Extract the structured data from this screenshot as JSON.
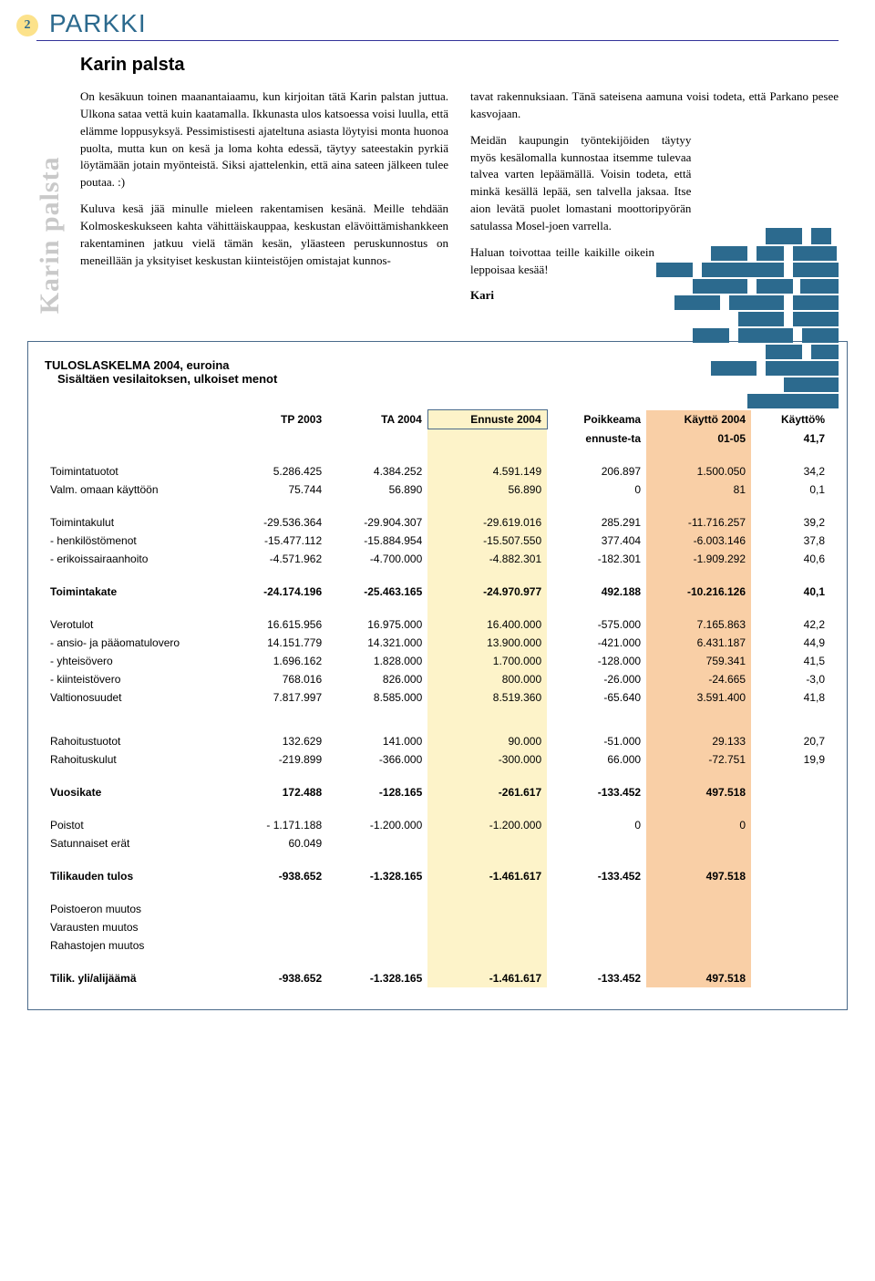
{
  "header": {
    "page_number": "2",
    "brand": "PARKKI",
    "brand_color": "#2c6a8e",
    "badge_bg": "#fce28b"
  },
  "article": {
    "side_label": "Karin palsta",
    "title": "Karin palsta",
    "col1_p1": "On kesäkuun toinen maanantaiaamu, kun kirjoitan tätä Karin palstan juttua. Ulkona sataa vettä kuin kaatamalla. Ikkunasta ulos katsoessa voisi luulla, että elämme loppusyksyä. Pessimistisesti ajateltuna asiasta löytyisi monta huonoa puolta, mutta kun on kesä ja loma kohta edessä, täytyy sateestakin pyrkiä löytämään jotain myönteistä. Siksi ajattelenkin, että aina sateen jälkeen tulee poutaa. :)",
    "col1_p2": "Kuluva kesä jää minulle mieleen rakentamisen kesänä. Meille tehdään Kolmoskeskukseen kahta vähittäiskauppaa, keskustan elävöittämishankkeen rakentaminen jatkuu vielä tämän kesän, yläasteen peruskunnostus on meneillään ja yksityiset keskustan kiinteistöjen omistajat kunnos-",
    "col2_p1": "tavat rakennuksiaan. Tänä sateisena aamuna voisi todeta, että Parkano pesee kasvojaan.",
    "col2_p2": "Meidän kaupungin työntekijöiden täytyy myös kesälomalla kunnostaa itsemme tulevaa talvea varten lepäämällä. Voisin todeta, että minkä kesällä lepää, sen talvella jaksaa. Itse aion levätä puolet lomastani moottoripyörän satulassa Mosel-joen varrella.",
    "col2_p3": "Haluan toivottaa teille kaikille oikein leppoisaa kesää!",
    "col2_sign": "Kari"
  },
  "mosaic": {
    "color": "#2c6a8e",
    "blocks": [
      [
        180,
        0,
        40,
        18
      ],
      [
        230,
        0,
        22,
        18
      ],
      [
        120,
        20,
        40,
        16
      ],
      [
        170,
        20,
        30,
        16
      ],
      [
        210,
        20,
        48,
        16
      ],
      [
        60,
        38,
        40,
        16
      ],
      [
        110,
        38,
        90,
        16
      ],
      [
        210,
        38,
        50,
        16
      ],
      [
        100,
        56,
        60,
        16
      ],
      [
        170,
        56,
        40,
        16
      ],
      [
        218,
        56,
        42,
        16
      ],
      [
        80,
        74,
        50,
        16
      ],
      [
        140,
        74,
        60,
        16
      ],
      [
        210,
        74,
        50,
        16
      ],
      [
        150,
        92,
        50,
        16
      ],
      [
        210,
        92,
        50,
        16
      ],
      [
        100,
        110,
        40,
        16
      ],
      [
        150,
        110,
        60,
        16
      ],
      [
        220,
        110,
        40,
        16
      ],
      [
        180,
        128,
        40,
        16
      ],
      [
        230,
        128,
        30,
        16
      ],
      [
        120,
        146,
        50,
        16
      ],
      [
        180,
        146,
        80,
        16
      ],
      [
        200,
        164,
        60,
        16
      ],
      [
        160,
        182,
        100,
        16
      ]
    ]
  },
  "table": {
    "title": "TULOSLASKELMA 2004, euroina",
    "subtitle": "Sisältäen vesilaitoksen, ulkoiset menot",
    "ennuste_bg": "#fdf3c9",
    "kaytto_bg": "#f9cfa6",
    "headers": {
      "c1": "TP 2003",
      "c2": "TA 2004",
      "c3": "Ennuste 2004",
      "c4a": "Poikkeama",
      "c4b": "ennuste-ta",
      "c5a": "Käyttö 2004",
      "c5b": "01-05",
      "c6a": "Käyttö%",
      "c6b": "41,7"
    },
    "rows": [
      {
        "type": "spacer"
      },
      {
        "label": "Toimintatuotot",
        "c1": "5.286.425",
        "c2": "4.384.252",
        "c3": "4.591.149",
        "c4": "206.897",
        "c5": "1.500.050",
        "c6": "34,2"
      },
      {
        "label": "Valm. omaan käyttöön",
        "c1": "75.744",
        "c2": "56.890",
        "c3": "56.890",
        "c4": "0",
        "c5": "81",
        "c6": "0,1"
      },
      {
        "type": "spacer"
      },
      {
        "label": "Toimintakulut",
        "c1": "-29.536.364",
        "c2": "-29.904.307",
        "c3": "-29.619.016",
        "c4": "285.291",
        "c5": "-11.716.257",
        "c6": "39,2"
      },
      {
        "label": "- henkilöstömenot",
        "c1": "-15.477.112",
        "c2": "-15.884.954",
        "c3": "-15.507.550",
        "c4": "377.404",
        "c5": "-6.003.146",
        "c6": "37,8"
      },
      {
        "label": "- erikoissairaanhoito",
        "c1": "-4.571.962",
        "c2": "-4.700.000",
        "c3": "-4.882.301",
        "c4": "-182.301",
        "c5": "-1.909.292",
        "c6": "40,6"
      },
      {
        "type": "spacer"
      },
      {
        "label": "Toimintakate",
        "bold": true,
        "c1": "-24.174.196",
        "c2": "-25.463.165",
        "c3": "-24.970.977",
        "c4": "492.188",
        "c5": "-10.216.126",
        "c6": "40,1"
      },
      {
        "type": "spacer"
      },
      {
        "label": "Verotulot",
        "c1": "16.615.956",
        "c2": "16.975.000",
        "c3": "16.400.000",
        "c4": "-575.000",
        "c5": "7.165.863",
        "c6": "42,2"
      },
      {
        "label": "- ansio- ja pääomatulovero",
        "c1": "14.151.779",
        "c2": "14.321.000",
        "c3": "13.900.000",
        "c4": "-421.000",
        "c5": "6.431.187",
        "c6": "44,9"
      },
      {
        "label": "- yhteisövero",
        "c1": "1.696.162",
        "c2": "1.828.000",
        "c3": "1.700.000",
        "c4": "-128.000",
        "c5": "759.341",
        "c6": "41,5"
      },
      {
        "label": "- kiinteistövero",
        "c1": "768.016",
        "c2": "826.000",
        "c3": "800.000",
        "c4": "-26.000",
        "c5": "-24.665",
        "c6": "-3,0"
      },
      {
        "label": "Valtionosuudet",
        "c1": "7.817.997",
        "c2": "8.585.000",
        "c3": "8.519.360",
        "c4": "-65.640",
        "c5": "3.591.400",
        "c6": "41,8"
      },
      {
        "type": "bigspacer"
      },
      {
        "label": "Rahoitustuotot",
        "c1": "132.629",
        "c2": "141.000",
        "c3": "90.000",
        "c4": "-51.000",
        "c5": "29.133",
        "c6": "20,7"
      },
      {
        "label": "Rahoituskulut",
        "c1": "-219.899",
        "c2": "-366.000",
        "c3": "-300.000",
        "c4": "66.000",
        "c5": "-72.751",
        "c6": "19,9"
      },
      {
        "type": "spacer"
      },
      {
        "label": "Vuosikate",
        "bold": true,
        "c1": "172.488",
        "c2": "-128.165",
        "c3": "-261.617",
        "c4": "-133.452",
        "c5": "497.518",
        "c6": ""
      },
      {
        "type": "spacer"
      },
      {
        "label": "Poistot",
        "c1": "-   1.171.188",
        "c2": "-1.200.000",
        "c3": "-1.200.000",
        "c4": "0",
        "c5": "0",
        "c6": ""
      },
      {
        "label": "Satunnaiset erät",
        "c1": "60.049",
        "c2": "",
        "c3": "",
        "c4": "",
        "c5": "",
        "c6": ""
      },
      {
        "type": "spacer"
      },
      {
        "label": "Tilikauden tulos",
        "bold": true,
        "c1": "-938.652",
        "c2": "-1.328.165",
        "c3": "-1.461.617",
        "c4": "-133.452",
        "c5": "497.518",
        "c6": ""
      },
      {
        "type": "spacer"
      },
      {
        "label": "Poistoeron muutos",
        "c1": "",
        "c2": "",
        "c3": "",
        "c4": "",
        "c5": "",
        "c6": ""
      },
      {
        "label": "Varausten muutos",
        "c1": "",
        "c2": "",
        "c3": "",
        "c4": "",
        "c5": "",
        "c6": ""
      },
      {
        "label": "Rahastojen muutos",
        "c1": "",
        "c2": "",
        "c3": "",
        "c4": "",
        "c5": "",
        "c6": ""
      },
      {
        "type": "spacer"
      },
      {
        "label": "Tilik. yli/alijäämä",
        "bold": true,
        "c1": "-938.652",
        "c2": "-1.328.165",
        "c3": "-1.461.617",
        "c4": "-133.452",
        "c5": "497.518",
        "c6": ""
      }
    ]
  }
}
